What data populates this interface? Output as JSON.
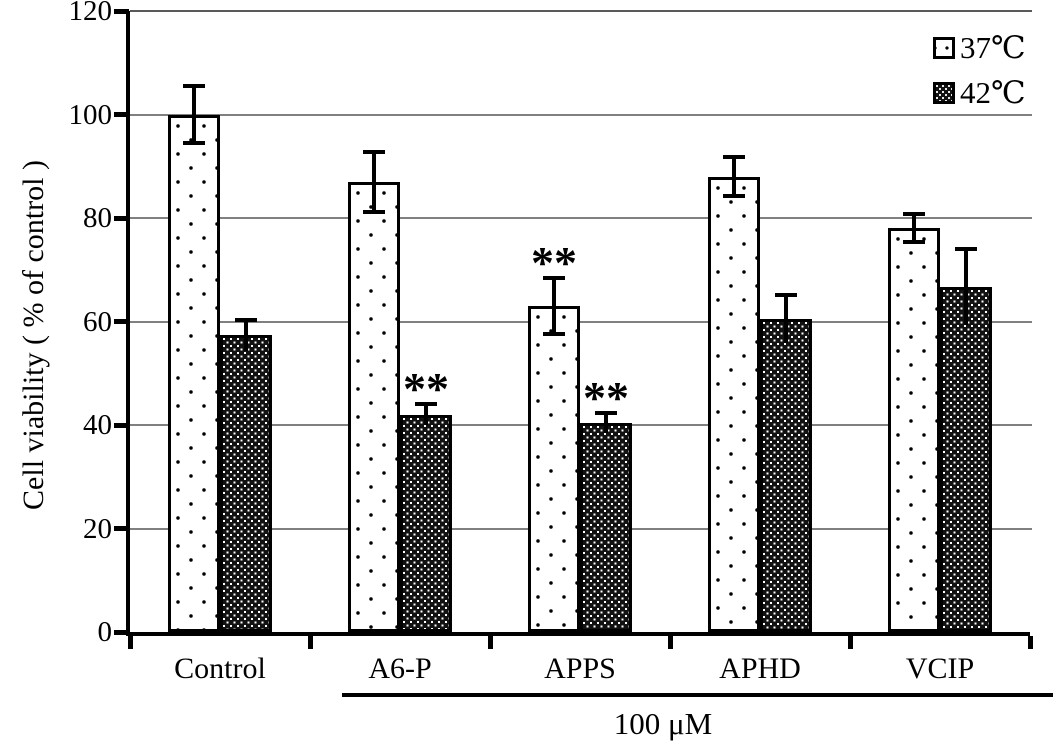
{
  "chart_data": {
    "type": "bar",
    "title": "",
    "xlabel": "",
    "ylabel": "Cell viability ( % of control )",
    "ylim": [
      0,
      120
    ],
    "yticks": [
      0,
      20,
      40,
      60,
      80,
      100,
      120
    ],
    "grid": true,
    "legend_position": "top-right",
    "categories": [
      "Control",
      "A6-P",
      "APPS",
      "APHD",
      "VCIP"
    ],
    "series": [
      {
        "name": "37℃",
        "pattern": "white-with-black-dots",
        "values": [
          100,
          87,
          63,
          88,
          78
        ],
        "errors": [
          5.5,
          5.8,
          5.5,
          3.8,
          2.7
        ],
        "significance": [
          "",
          "",
          "**",
          "",
          ""
        ]
      },
      {
        "name": "42℃",
        "pattern": "black-with-white-dots",
        "values": [
          57.3,
          42,
          40.4,
          60.5,
          66.7
        ],
        "errors": [
          3,
          2,
          2,
          4.6,
          7.3
        ],
        "significance": [
          "",
          "**",
          "**",
          "",
          ""
        ]
      }
    ],
    "group_bracket": {
      "label": "100 μM",
      "categories": [
        "A6-P",
        "APPS",
        "APHD",
        "VCIP"
      ]
    },
    "colors": {
      "foreground": "#000000",
      "background": "#ffffff",
      "gridline": "#808080"
    }
  }
}
